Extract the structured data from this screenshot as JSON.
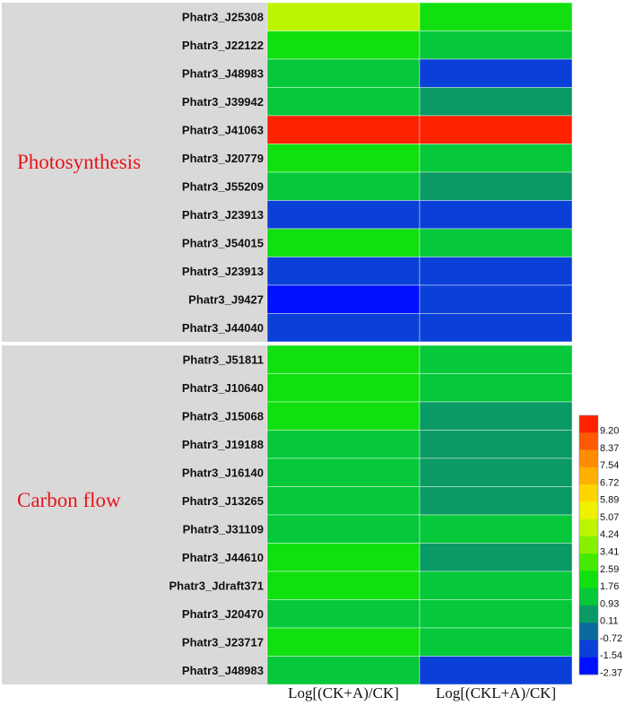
{
  "chart_data": {
    "type": "heatmap",
    "columns": [
      "Log[(CK+A)/CK]",
      "Log[(CKL+A)/CK]"
    ],
    "groups": [
      {
        "name": "Photosynthesis",
        "rows": [
          {
            "gene": "Phatr3_J25308",
            "values": [
              4.24,
              1.76
            ]
          },
          {
            "gene": "Phatr3_J22122",
            "values": [
              1.76,
              0.93
            ]
          },
          {
            "gene": "Phatr3_J48983",
            "values": [
              0.93,
              -1.54
            ]
          },
          {
            "gene": "Phatr3_J39942",
            "values": [
              0.93,
              0.11
            ]
          },
          {
            "gene": "Phatr3_J41063",
            "values": [
              9.2,
              9.2
            ]
          },
          {
            "gene": "Phatr3_J20779",
            "values": [
              1.76,
              0.93
            ]
          },
          {
            "gene": "Phatr3_J55209",
            "values": [
              0.93,
              0.11
            ]
          },
          {
            "gene": "Phatr3_J23913",
            "values": [
              -1.54,
              -1.54
            ]
          },
          {
            "gene": "Phatr3_J54015",
            "values": [
              1.76,
              0.93
            ]
          },
          {
            "gene": "Phatr3_J23913",
            "values": [
              -1.54,
              -1.54
            ]
          },
          {
            "gene": "Phatr3_J9427",
            "values": [
              -2.37,
              -1.54
            ]
          },
          {
            "gene": "Phatr3_J44040",
            "values": [
              -1.54,
              -1.54
            ]
          }
        ]
      },
      {
        "name": "Carbon flow",
        "rows": [
          {
            "gene": "Phatr3_J51811",
            "values": [
              1.76,
              0.93
            ]
          },
          {
            "gene": "Phatr3_J10640",
            "values": [
              1.76,
              0.93
            ]
          },
          {
            "gene": "Phatr3_J15068",
            "values": [
              1.76,
              0.11
            ]
          },
          {
            "gene": "Phatr3_J19188",
            "values": [
              0.93,
              0.11
            ]
          },
          {
            "gene": "Phatr3_J16140",
            "values": [
              0.93,
              0.11
            ]
          },
          {
            "gene": "Phatr3_J13265",
            "values": [
              0.93,
              0.11
            ]
          },
          {
            "gene": "Phatr3_J31109",
            "values": [
              0.93,
              0.93
            ]
          },
          {
            "gene": "Phatr3_J44610",
            "values": [
              1.76,
              0.11
            ]
          },
          {
            "gene": "Phatr3_Jdraft371",
            "values": [
              1.76,
              0.93
            ]
          },
          {
            "gene": "Phatr3_J20470",
            "values": [
              0.93,
              0.93
            ]
          },
          {
            "gene": "Phatr3_J23717",
            "values": [
              1.76,
              0.93
            ]
          },
          {
            "gene": "Phatr3_J48983",
            "values": [
              0.93,
              -1.54
            ]
          }
        ]
      }
    ],
    "legend": {
      "ticks": [
        "9.20",
        "8.37",
        "7.54",
        "6.72",
        "5.89",
        "5.07",
        "4.24",
        "3.41",
        "2.59",
        "1.76",
        "0.93",
        "0.11",
        "-0.72",
        "-1.54",
        "-2.37"
      ],
      "colors": [
        "#ff2200",
        "#ff5a00",
        "#ff8c00",
        "#ffb000",
        "#ffd500",
        "#eef200",
        "#bdf500",
        "#86f000",
        "#44ea00",
        "#10e010",
        "#05c83a",
        "#0a9a64",
        "#0a6a9c",
        "#0a40d8",
        "#0010ff"
      ]
    },
    "colors": {
      "group_background": "#d9d9d9",
      "group_label": "#e8141b",
      "cell_border": "#ffffff"
    }
  }
}
